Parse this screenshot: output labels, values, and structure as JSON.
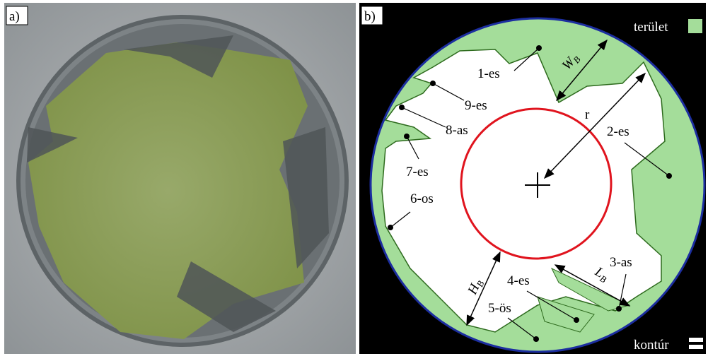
{
  "panels": {
    "a": {
      "label": "a)"
    },
    "b": {
      "label": "b)"
    }
  },
  "legend": {
    "area": "terület",
    "contour": "kontúr"
  },
  "regions": [
    "1-es",
    "2-es",
    "3-as",
    "4-es",
    "5-ös",
    "6-os",
    "7-es",
    "8-as",
    "9-es"
  ],
  "dimensions": {
    "r": "r",
    "wb": {
      "main": "W",
      "sub": "B"
    },
    "hb": {
      "main": "H",
      "sub": "B"
    },
    "lb": {
      "main": "L",
      "sub": "B"
    }
  }
}
